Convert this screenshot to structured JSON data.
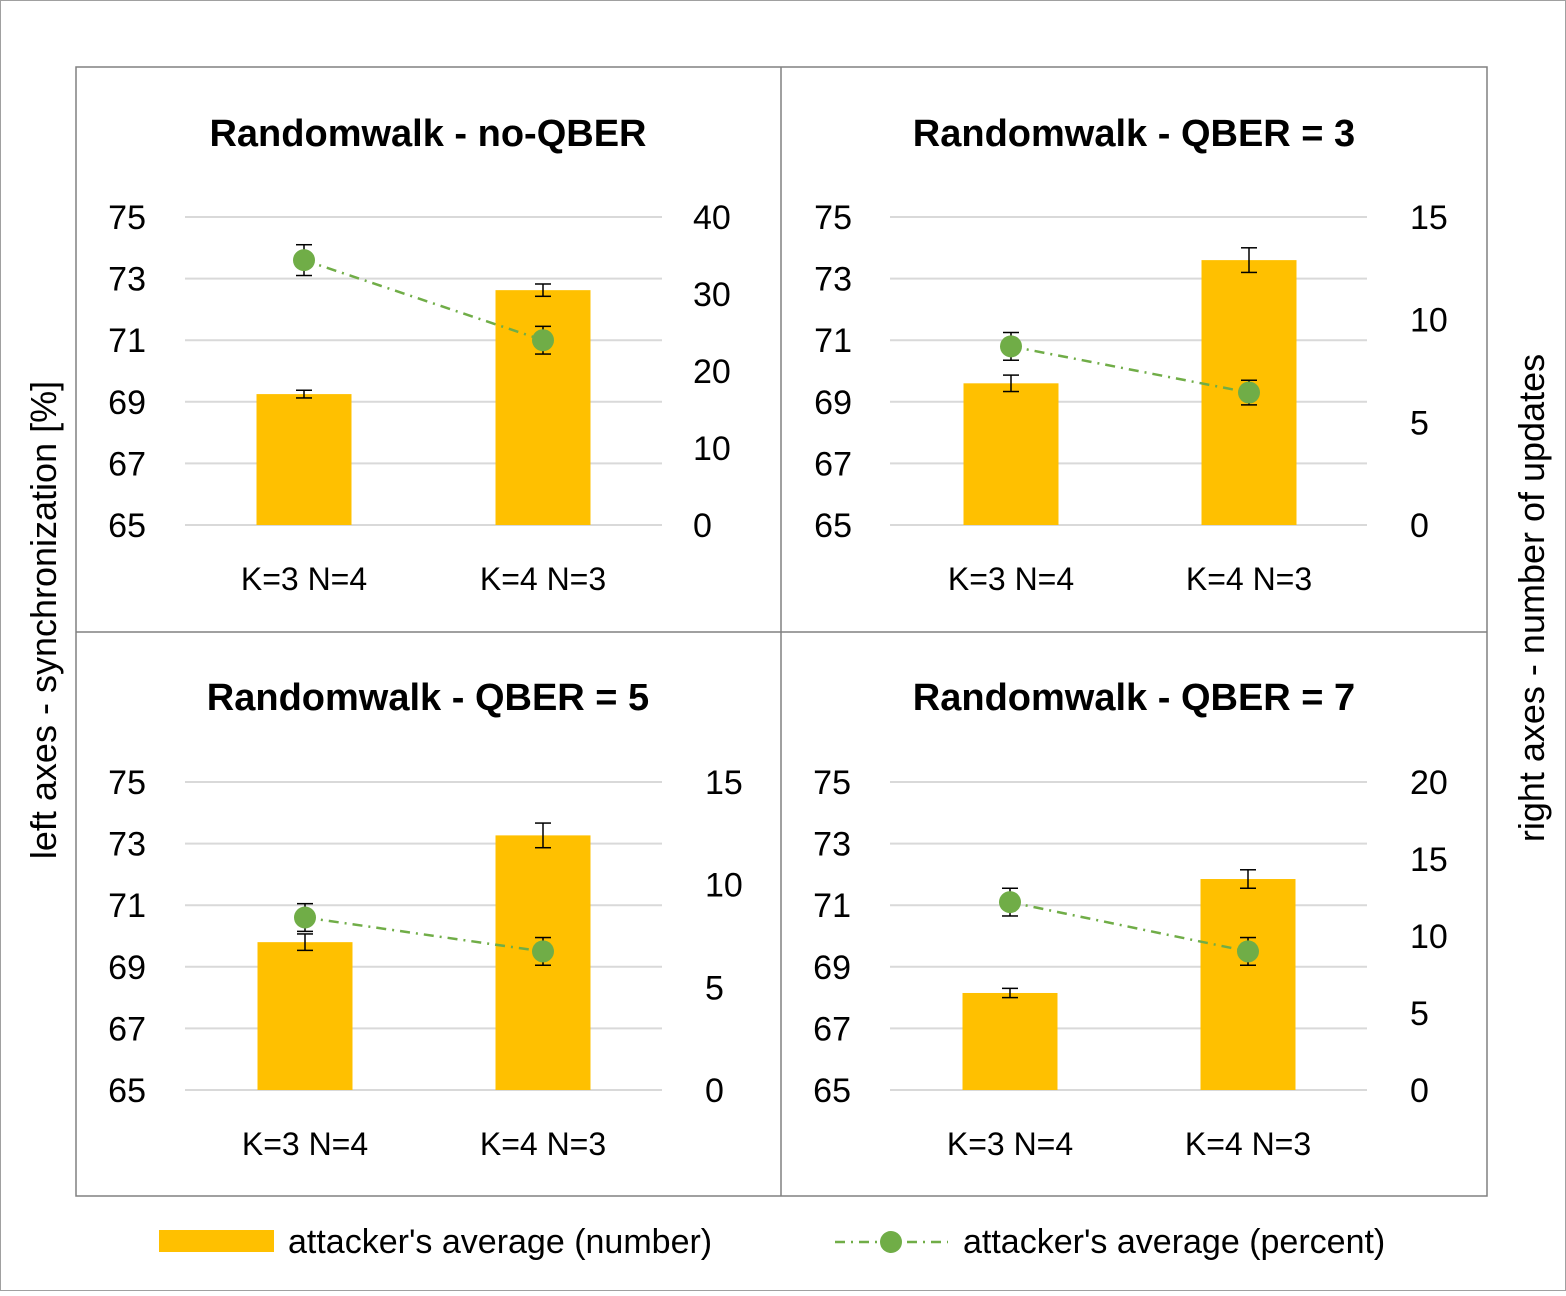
{
  "figure": {
    "left_axis_label": "left axes - synchronization [%]",
    "right_axis_label": "right axes - number of updates"
  },
  "legend": {
    "bar_label": "attacker's average (number)",
    "line_label": "attacker's average (percent)"
  },
  "colors": {
    "bar": "#FFC000",
    "line": "#70AD47",
    "grid": "#D9D9D9",
    "border": "#808080",
    "errorbar": "#000000"
  },
  "chart_data": [
    {
      "type": "bar",
      "title": "Randomwalk - no-QBER",
      "categories": [
        "K=3 N=4",
        "K=4 N=3"
      ],
      "left_axis": {
        "ylim": [
          65,
          75
        ],
        "ticks": [
          65,
          67,
          69,
          71,
          73,
          75
        ]
      },
      "right_axis": {
        "ylim": [
          0,
          40
        ],
        "ticks": [
          0,
          10,
          20,
          30,
          40
        ]
      },
      "series": [
        {
          "name": "attacker's average (number)",
          "kind": "bar",
          "axis": "right",
          "values": [
            17.0,
            30.5
          ],
          "errors": [
            0.5,
            0.8
          ]
        },
        {
          "name": "attacker's average (percent)",
          "kind": "line",
          "axis": "left",
          "values": [
            73.6,
            71.0
          ],
          "errors": [
            0.5,
            0.45
          ]
        }
      ]
    },
    {
      "type": "bar",
      "title": "Randomwalk - QBER = 3",
      "categories": [
        "K=3 N=4",
        "K=4 N=3"
      ],
      "left_axis": {
        "ylim": [
          65,
          75
        ],
        "ticks": [
          65,
          67,
          69,
          71,
          73,
          75
        ]
      },
      "right_axis": {
        "ylim": [
          0,
          15
        ],
        "ticks": [
          0,
          5,
          10,
          15
        ]
      },
      "series": [
        {
          "name": "attacker's average (number)",
          "kind": "bar",
          "axis": "right",
          "values": [
            6.9,
            12.9
          ],
          "errors": [
            0.4,
            0.6
          ]
        },
        {
          "name": "attacker's average (percent)",
          "kind": "line",
          "axis": "left",
          "values": [
            70.8,
            69.3
          ],
          "errors": [
            0.45,
            0.4
          ]
        }
      ]
    },
    {
      "type": "bar",
      "title": "Randomwalk - QBER = 5",
      "categories": [
        "K=3 N=4",
        "K=4 N=3"
      ],
      "left_axis": {
        "ylim": [
          65,
          75
        ],
        "ticks": [
          65,
          67,
          69,
          71,
          73,
          75
        ]
      },
      "right_axis": {
        "ylim": [
          0,
          15
        ],
        "ticks": [
          0,
          5,
          10,
          15
        ]
      },
      "series": [
        {
          "name": "attacker's average (number)",
          "kind": "bar",
          "axis": "right",
          "values": [
            7.2,
            12.4
          ],
          "errors": [
            0.4,
            0.6
          ]
        },
        {
          "name": "attacker's average (percent)",
          "kind": "line",
          "axis": "left",
          "values": [
            70.6,
            69.5
          ],
          "errors": [
            0.45,
            0.45
          ]
        }
      ]
    },
    {
      "type": "bar",
      "title": "Randomwalk - QBER = 7",
      "categories": [
        "K=3 N=4",
        "K=4 N=3"
      ],
      "left_axis": {
        "ylim": [
          65,
          75
        ],
        "ticks": [
          65,
          67,
          69,
          71,
          73,
          75
        ]
      },
      "right_axis": {
        "ylim": [
          0,
          20
        ],
        "ticks": [
          0,
          5,
          10,
          15,
          20
        ]
      },
      "series": [
        {
          "name": "attacker's average (number)",
          "kind": "bar",
          "axis": "right",
          "values": [
            6.3,
            13.7
          ],
          "errors": [
            0.3,
            0.6
          ]
        },
        {
          "name": "attacker's average (percent)",
          "kind": "line",
          "axis": "left",
          "values": [
            71.1,
            69.5
          ],
          "errors": [
            0.45,
            0.45
          ]
        }
      ]
    }
  ]
}
